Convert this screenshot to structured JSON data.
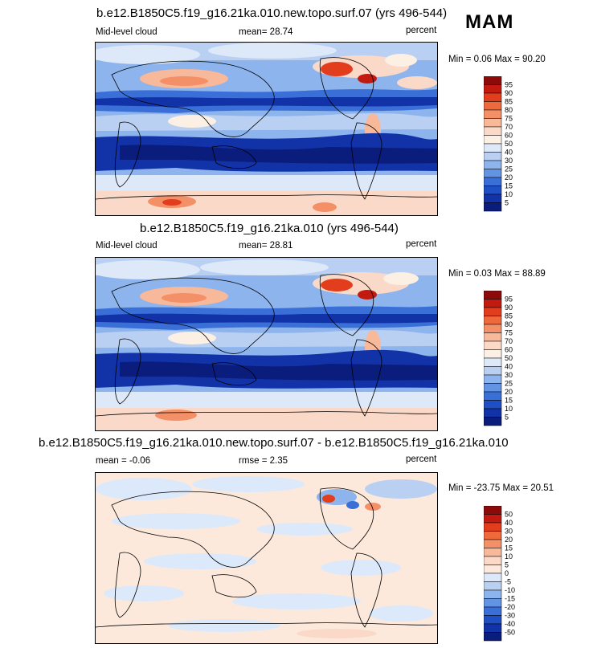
{
  "season": "MAM",
  "panels": [
    {
      "title": "b.e12.B1850C5.f19_g16.21ka.010.new.topo.surf.07 (yrs 496-544)",
      "left_label": "Mid-level cloud",
      "center_label": "mean=  28.74",
      "right_label": "percent",
      "minmax": "Min =   0.06 Max =  90.20",
      "colorbar_labels": [
        "95",
        "90",
        "85",
        "80",
        "75",
        "70",
        "60",
        "50",
        "40",
        "30",
        "25",
        "20",
        "15",
        "10",
        "5"
      ]
    },
    {
      "title": "b.e12.B1850C5.f19_g16.21ka.010 (yrs 496-544)",
      "left_label": "Mid-level cloud",
      "center_label": "mean=  28.81",
      "right_label": "percent",
      "minmax": "Min =   0.03 Max =  88.89",
      "colorbar_labels": [
        "95",
        "90",
        "85",
        "80",
        "75",
        "70",
        "60",
        "50",
        "40",
        "30",
        "25",
        "20",
        "15",
        "10",
        "5"
      ]
    },
    {
      "title": "b.e12.B1850C5.f19_g16.21ka.010.new.topo.surf.07 - b.e12.B1850C5.f19_g16.21ka.010",
      "left_label": "mean =  -0.06",
      "center_label": "rmse =   2.35",
      "right_label": "percent",
      "minmax": "Min = -23.75 Max =  20.51",
      "colorbar_labels": [
        "50",
        "40",
        "30",
        "20",
        "15",
        "10",
        "5",
        "0",
        "-5",
        "-10",
        "-15",
        "-20",
        "-30",
        "-40",
        "-50"
      ]
    }
  ],
  "colors": {
    "abs_scale": [
      "#8c0a0a",
      "#c21a10",
      "#e23d1c",
      "#ee6a3c",
      "#f49068",
      "#f8b89a",
      "#fbd9c8",
      "#fcefe4",
      "#dde8f8",
      "#b9d0f2",
      "#8db4ec",
      "#6394e4",
      "#3a6fd8",
      "#1f4fc4",
      "#1232a8",
      "#0b1d7c"
    ],
    "diff_scale": [
      "#8c0a0a",
      "#c21a10",
      "#e23d1c",
      "#ee6a3c",
      "#f49068",
      "#f8b89a",
      "#fbd9c8",
      "#fce9dc",
      "#dce9fa",
      "#b9d0f2",
      "#8db4ec",
      "#6394e4",
      "#3a6fd8",
      "#1f4fc4",
      "#1232a8",
      "#0b1d7c"
    ]
  }
}
